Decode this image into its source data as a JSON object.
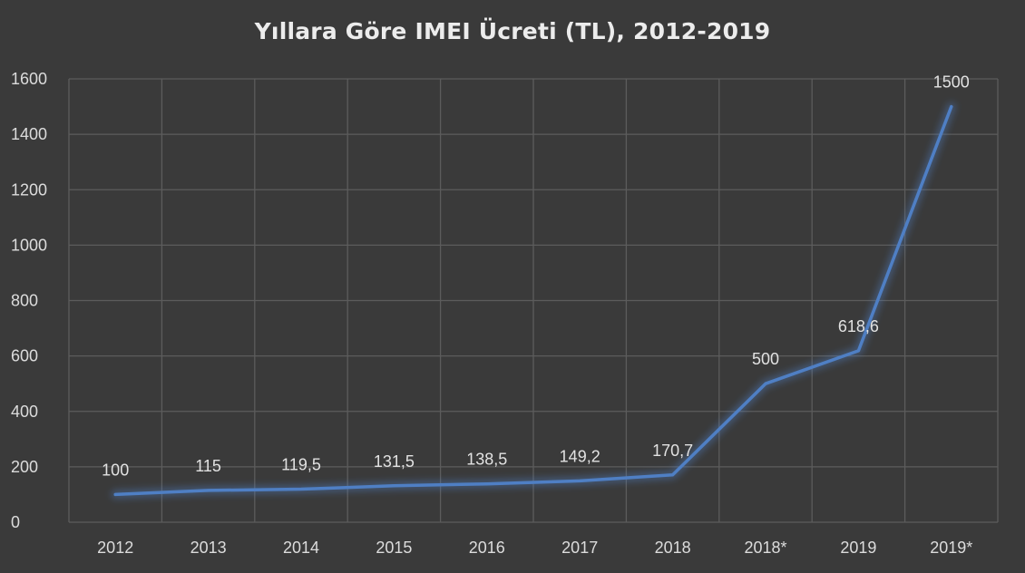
{
  "chart_data": {
    "type": "line",
    "title": "Yıllara Göre IMEI Ücreti (TL), 2012-2019",
    "categories": [
      "2012",
      "2013",
      "2014",
      "2015",
      "2016",
      "2017",
      "2018",
      "2018*",
      "2019",
      "2019*"
    ],
    "series": [
      {
        "values": [
          100,
          115,
          119.5,
          131.5,
          138.5,
          149.2,
          170.7,
          500,
          618.6,
          1500
        ],
        "data_labels": [
          "100",
          "115",
          "119,5",
          "131,5",
          "138,5",
          "149,2",
          "170,7",
          "500",
          "618,6",
          "1500"
        ],
        "color": "#4f7fc4"
      }
    ],
    "ylim": [
      0,
      1600
    ],
    "yticks": [
      0,
      200,
      400,
      600,
      800,
      1000,
      1200,
      1400,
      1600
    ],
    "grid": true,
    "legend": "none",
    "background": "#3a3a3a",
    "gridColor": "#5c5c5c"
  }
}
